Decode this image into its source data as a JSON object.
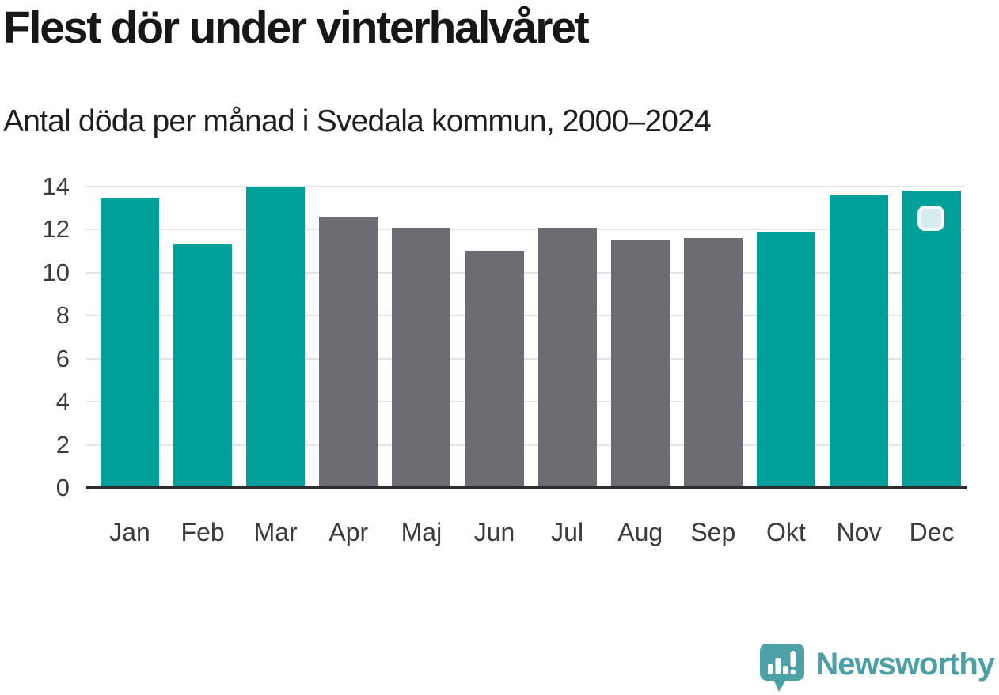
{
  "header": {
    "title": "Flest dör under vinterhalvåret",
    "subtitle": "Antal döda per månad i Svedala kommun, 2000–2024"
  },
  "chart_data": {
    "type": "bar",
    "categories": [
      "Jan",
      "Feb",
      "Mar",
      "Apr",
      "Maj",
      "Jun",
      "Jul",
      "Aug",
      "Sep",
      "Okt",
      "Nov",
      "Dec"
    ],
    "values": [
      13.5,
      11.3,
      14.0,
      12.6,
      12.1,
      11.0,
      12.1,
      11.5,
      11.6,
      11.9,
      13.6,
      13.8
    ],
    "bar_colors": [
      "highlight",
      "highlight",
      "highlight",
      "base",
      "base",
      "base",
      "base",
      "base",
      "base",
      "highlight",
      "highlight",
      "highlight"
    ],
    "title": "Flest dör under vinterhalvåret",
    "xlabel": "",
    "ylabel": "",
    "ylim": [
      0,
      14
    ],
    "yticks": [
      0,
      2,
      4,
      6,
      8,
      10,
      12,
      14
    ],
    "grid": true,
    "legend": "none",
    "colors": {
      "highlight": "#00a09a",
      "base": "#6e6c72",
      "gridline": "#e4e4e4",
      "axis_line": "#2d2d2d",
      "tick_text": "#3b3b3b"
    }
  },
  "overlay": {
    "marker_fill": "#d7ecee",
    "marker_border": "#f4fbfb"
  },
  "footer": {
    "brand": "Newsworthy",
    "brand_color": "#4c9fa4"
  }
}
